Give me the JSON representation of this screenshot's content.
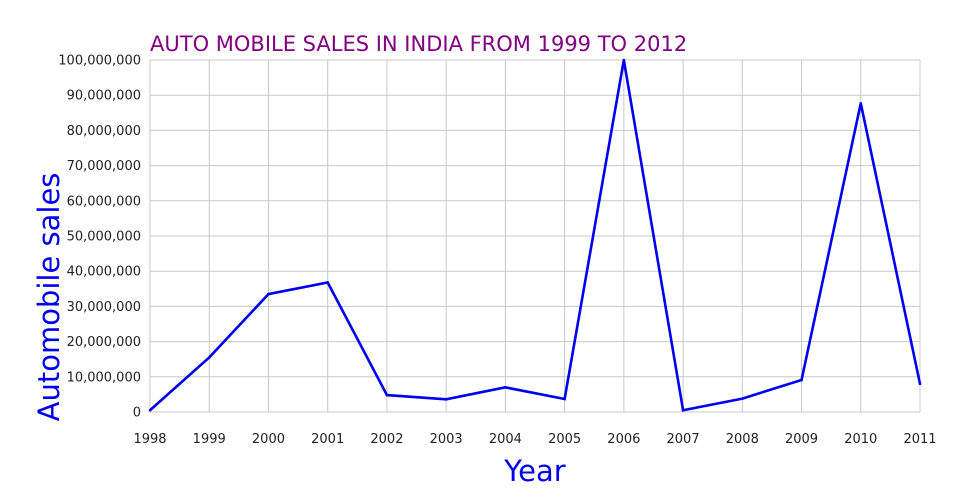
{
  "chart_data": {
    "type": "line",
    "title": "AUTO MOBILE SALES IN INDIA FROM 1999 TO 2012",
    "xlabel": "Year",
    "ylabel": "Automobile sales",
    "x": [
      "1998",
      "1999",
      "2000",
      "2001",
      "2002",
      "2003",
      "2004",
      "2005",
      "2006",
      "2007",
      "2008",
      "2009",
      "2010",
      "2011"
    ],
    "y_ticks": [
      "0",
      "10,000,000",
      "20,000,000",
      "30,000,000",
      "40,000,000",
      "50,000,000",
      "60,000,000",
      "70,000,000",
      "80,000,000",
      "90,000,000",
      "100,000,000"
    ],
    "ylim": [
      0,
      100000000
    ],
    "grid": true,
    "series": [
      {
        "values": [
          500000,
          15500000,
          33500000,
          36800000,
          4800000,
          3600000,
          7000000,
          3700000,
          100000000,
          500000,
          3800000,
          9100000,
          87700000,
          8000000
        ],
        "color": "#0000ee"
      }
    ]
  }
}
